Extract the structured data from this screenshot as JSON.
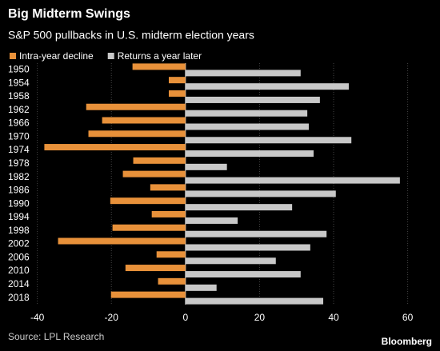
{
  "chart_data": {
    "type": "bar",
    "orientation": "horizontal",
    "title": "Big Midterm Swings",
    "subtitle": "S&P 500 pullbacks in U.S. midterm election years",
    "categories": [
      "1950",
      "1954",
      "1958",
      "1962",
      "1966",
      "1970",
      "1974",
      "1978",
      "1982",
      "1986",
      "1990",
      "1994",
      "1998",
      "2002",
      "2006",
      "2010",
      "2014",
      "2018"
    ],
    "series": [
      {
        "name": "Intra-year decline",
        "color": "#e8913a",
        "values": [
          -14.3,
          -4.5,
          -4.5,
          -26.8,
          -22.5,
          -26.2,
          -38.1,
          -14.1,
          -16.9,
          -9.5,
          -20.3,
          -9.1,
          -19.7,
          -34.4,
          -7.8,
          -16.2,
          -7.4,
          -20.1
        ]
      },
      {
        "name": "Returns a year later",
        "color": "#c8c8c8",
        "values": [
          31.1,
          44.1,
          36.3,
          32.9,
          33.3,
          44.8,
          34.6,
          11.2,
          57.9,
          40.6,
          28.8,
          14.1,
          38.1,
          33.7,
          24.4,
          31.1,
          8.4,
          37.2
        ]
      }
    ],
    "xlim": [
      -41,
      67
    ],
    "xticks": [
      -40,
      -20,
      0,
      20,
      40,
      60
    ],
    "grid": true,
    "source": "Source: LPL Research",
    "brand": "Bloomberg"
  }
}
